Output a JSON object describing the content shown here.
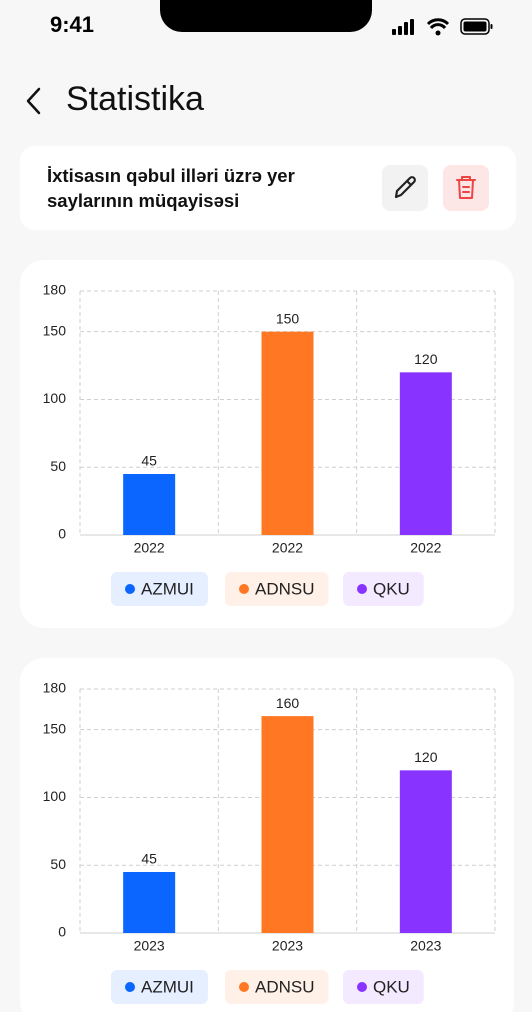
{
  "status_bar": {
    "time": "9:41"
  },
  "header": {
    "title": "Statistika"
  },
  "card": {
    "title": "İxtisasın qəbul illəri üzrə yer saylarının müqayisəsi"
  },
  "chart_data": [
    {
      "type": "bar",
      "categories": [
        "2022",
        "2022",
        "2022"
      ],
      "values": [
        45,
        150,
        120
      ],
      "colors": [
        "#0a66ff",
        "#ff7722",
        "#8833ff"
      ],
      "legend": [
        "AZMUI",
        "ADNSU",
        "QKU"
      ],
      "ylim": [
        0,
        180
      ],
      "yticks": [
        0,
        50,
        100,
        150,
        180
      ],
      "grid": true
    },
    {
      "type": "bar",
      "categories": [
        "2023",
        "2023",
        "2023"
      ],
      "values": [
        45,
        160,
        120
      ],
      "colors": [
        "#0a66ff",
        "#ff7722",
        "#8833ff"
      ],
      "legend": [
        "AZMUI",
        "ADNSU",
        "QKU"
      ],
      "ylim": [
        0,
        180
      ],
      "yticks": [
        0,
        50,
        100,
        150,
        180
      ],
      "grid": true
    }
  ]
}
